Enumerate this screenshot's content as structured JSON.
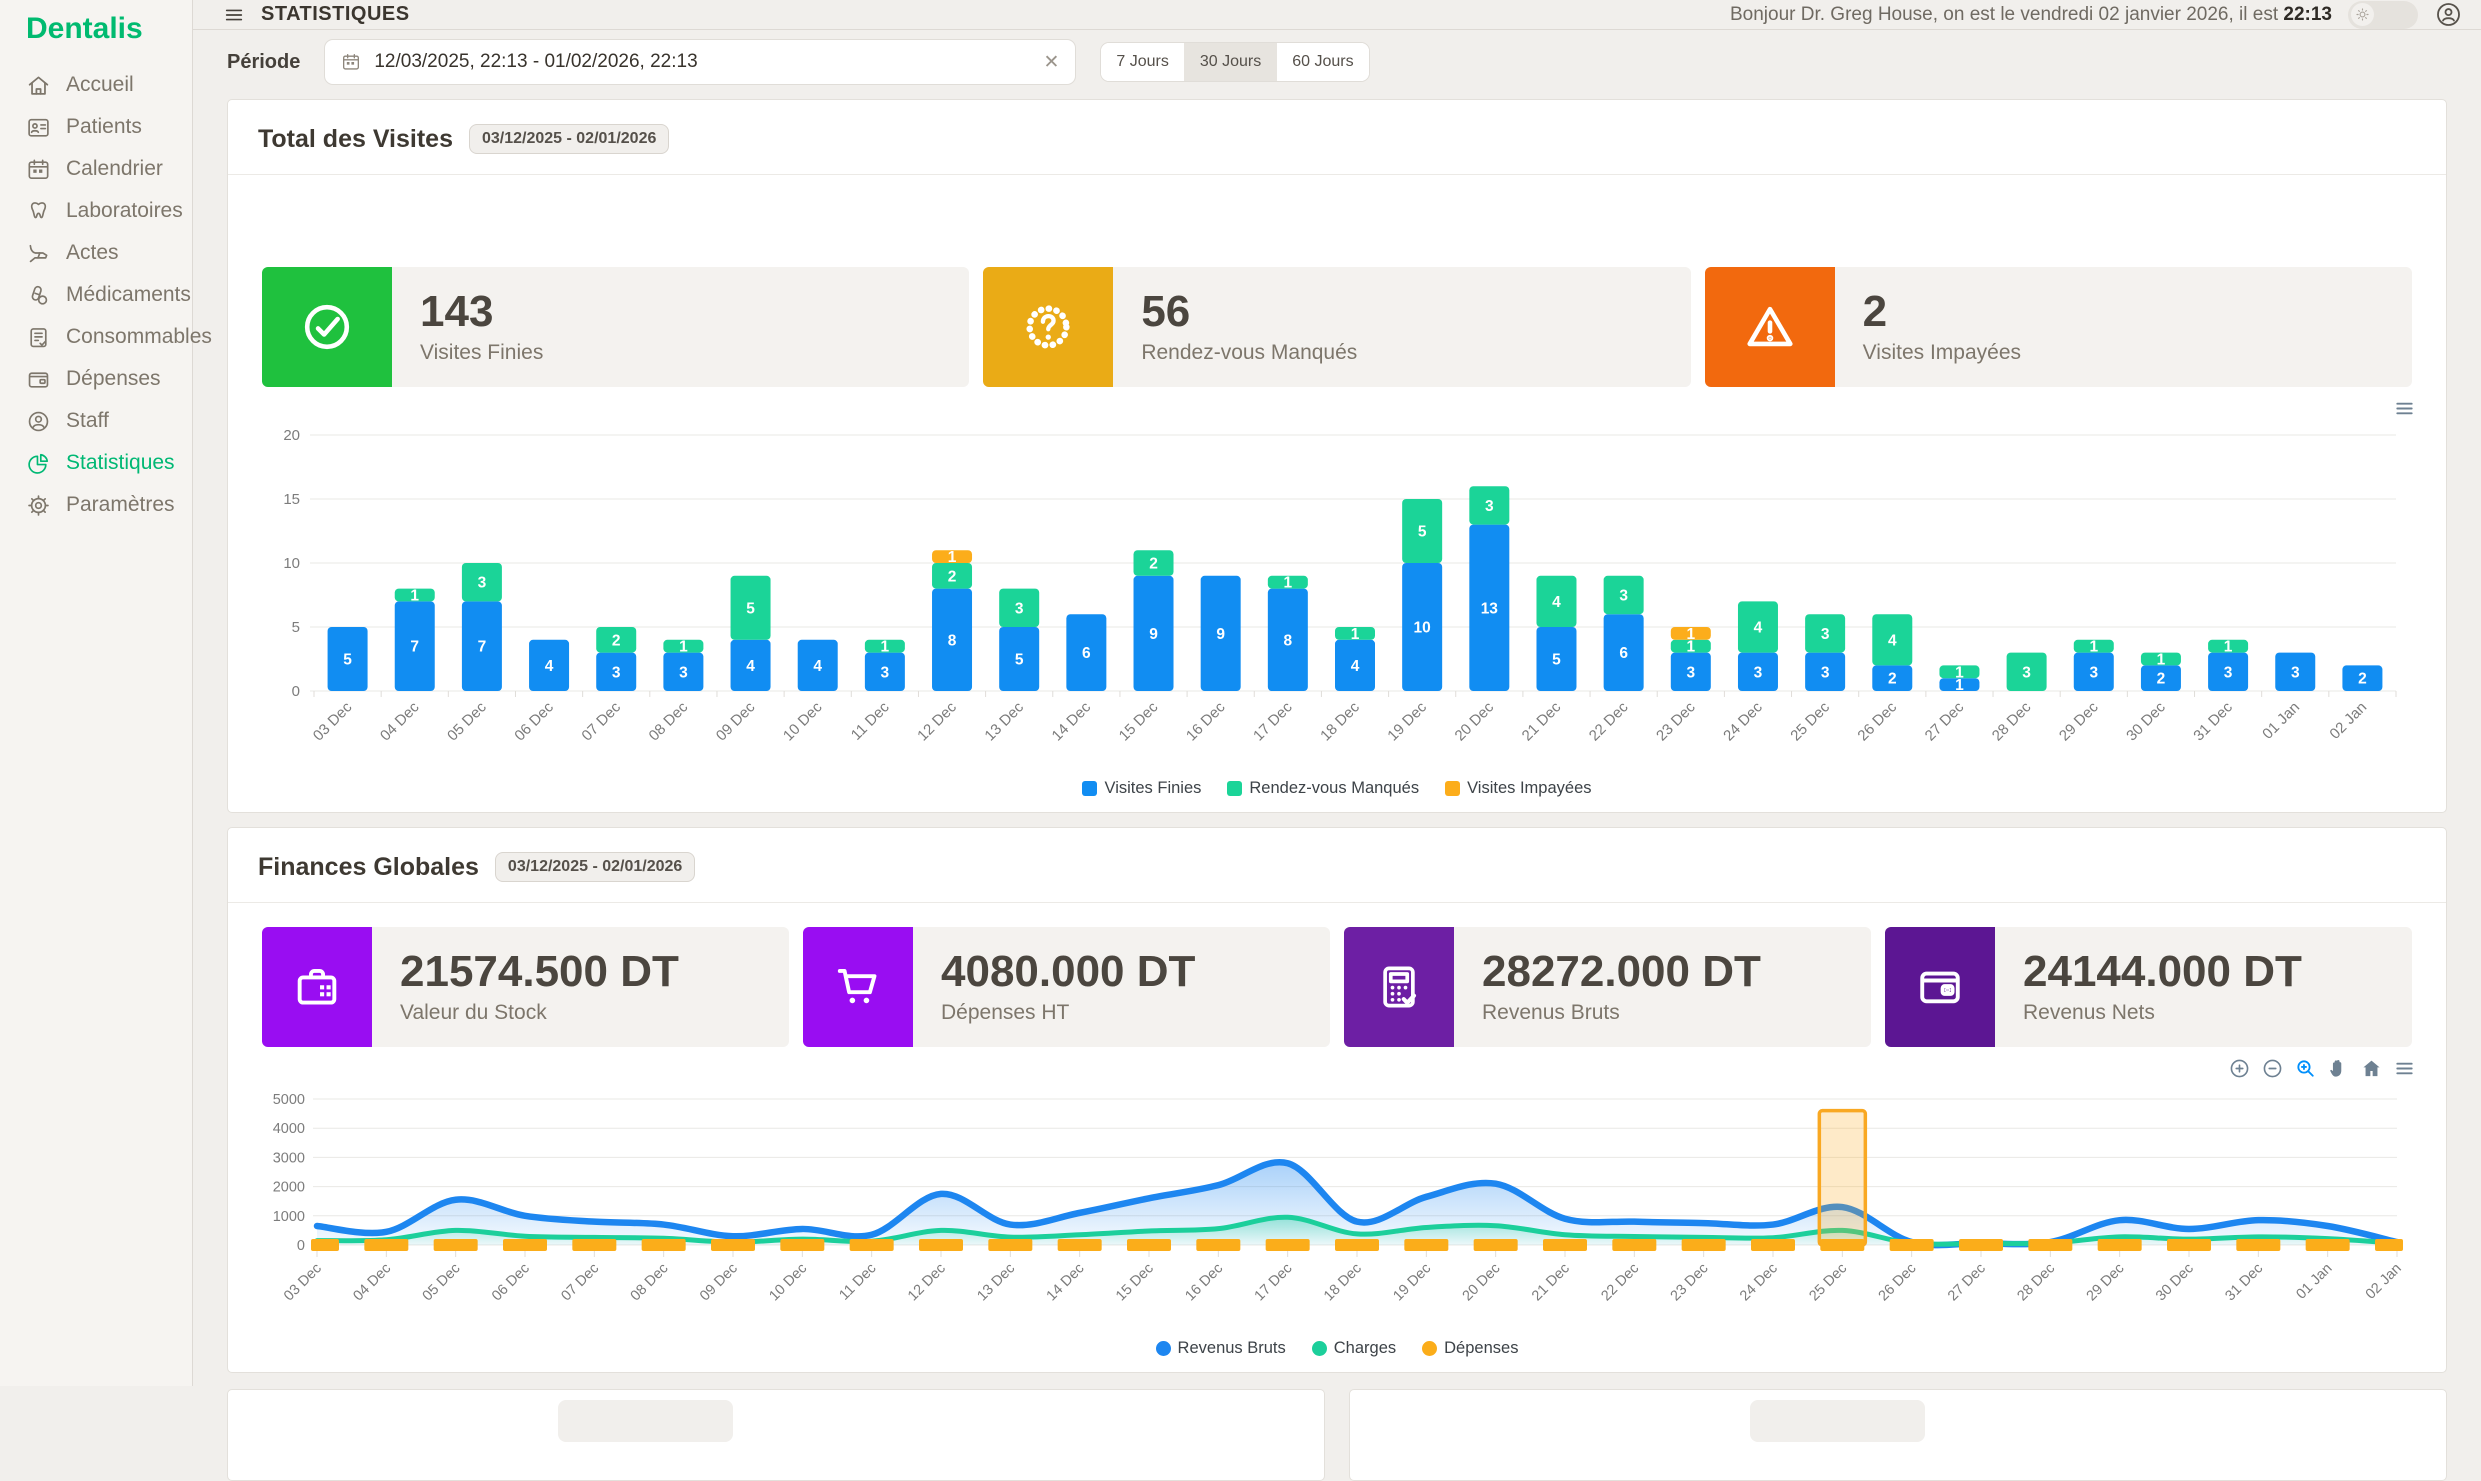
{
  "topbar": {
    "title": "STATISTIQUES",
    "greeting_prefix": "Bonjour Dr. Greg House, on est le vendredi 02 janvier 2026, il est ",
    "time": "22:13"
  },
  "sidebar": {
    "logo": "Dentalis",
    "items": [
      {
        "id": "accueil",
        "label": "Accueil",
        "icon": "home-icon",
        "active": false
      },
      {
        "id": "patients",
        "label": "Patients",
        "icon": "patients-icon",
        "active": false
      },
      {
        "id": "calendrier",
        "label": "Calendrier",
        "icon": "calendar-icon",
        "active": false
      },
      {
        "id": "laboratoires",
        "label": "Laboratoires",
        "icon": "tooth-icon",
        "active": false
      },
      {
        "id": "actes",
        "label": "Actes",
        "icon": "dental-chair-icon",
        "active": false
      },
      {
        "id": "medicaments",
        "label": "Médicaments",
        "icon": "pills-icon",
        "active": false
      },
      {
        "id": "consommables",
        "label": "Consommables",
        "icon": "clipboard-check-icon",
        "active": false
      },
      {
        "id": "depenses",
        "label": "Dépenses",
        "icon": "wallet-icon",
        "active": false
      },
      {
        "id": "staff",
        "label": "Staff",
        "icon": "user-circle-icon",
        "active": false
      },
      {
        "id": "statistiques",
        "label": "Statistiques",
        "icon": "pie-chart-icon",
        "active": true
      },
      {
        "id": "parametres",
        "label": "Paramètres",
        "icon": "gear-icon",
        "active": false
      }
    ]
  },
  "periode": {
    "label": "Période",
    "value": "12/03/2025, 22:13 - 01/02/2026, 22:13",
    "quick_ranges": [
      {
        "label": "7 Jours",
        "active": false
      },
      {
        "label": "30 Jours",
        "active": true
      },
      {
        "label": "60 Jours",
        "active": false
      }
    ]
  },
  "visites": {
    "title": "Total des Visites",
    "badge": "03/12/2025 - 02/01/2026",
    "toolbar_icons": [
      "menu-icon"
    ],
    "stats": [
      {
        "value": "143",
        "label": "Visites Finies",
        "icon": "check-circle-icon",
        "color": "#1fc13e"
      },
      {
        "value": "56",
        "label": "Rendez-vous Manqués",
        "icon": "question-seal-icon",
        "color": "#eaab16"
      },
      {
        "value": "2",
        "label": "Visites Impayées",
        "icon": "warning-triangle-icon",
        "color": "#f2690e"
      }
    ]
  },
  "finances": {
    "title": "Finances Globales",
    "badge": "03/12/2025 - 02/01/2026",
    "toolbar_icons": [
      "zoom-in-icon",
      "zoom-out-icon",
      "selection-zoom-icon",
      "pan-icon",
      "reset-icon",
      "menu-icon"
    ],
    "stats": [
      {
        "value": "21574.500 DT",
        "label": "Valeur du Stock",
        "icon": "briefcase-icon",
        "color": "#990df2"
      },
      {
        "value": "4080.000 DT",
        "label": "Dépenses HT",
        "icon": "cart-icon",
        "color": "#990df2"
      },
      {
        "value": "28272.000 DT",
        "label": "Revenus Bruts",
        "icon": "calculator-icon",
        "color": "#6d1fa4"
      },
      {
        "value": "24144.000 DT",
        "label": "Revenus Nets",
        "icon": "wallet2-icon",
        "color": "#5c1693"
      }
    ]
  },
  "chart_data": [
    {
      "type": "bar",
      "stacked": true,
      "title": "Total des Visites",
      "categories": [
        "03 Dec",
        "04 Dec",
        "05 Dec",
        "06 Dec",
        "07 Dec",
        "08 Dec",
        "09 Dec",
        "10 Dec",
        "11 Dec",
        "12 Dec",
        "13 Dec",
        "14 Dec",
        "15 Dec",
        "16 Dec",
        "17 Dec",
        "18 Dec",
        "19 Dec",
        "20 Dec",
        "21 Dec",
        "22 Dec",
        "23 Dec",
        "24 Dec",
        "25 Dec",
        "26 Dec",
        "27 Dec",
        "28 Dec",
        "29 Dec",
        "30 Dec",
        "31 Dec",
        "01 Jan",
        "02 Jan"
      ],
      "series": [
        {
          "name": "Visites Finies",
          "color": "#118df2",
          "values": [
            5,
            7,
            7,
            4,
            3,
            3,
            4,
            4,
            3,
            8,
            5,
            6,
            9,
            9,
            8,
            4,
            10,
            13,
            5,
            6,
            3,
            3,
            3,
            2,
            1,
            0,
            3,
            2,
            3,
            3,
            2
          ]
        },
        {
          "name": "Rendez-vous Manqués",
          "color": "#1bd498",
          "values": [
            0,
            1,
            3,
            0,
            2,
            1,
            5,
            0,
            1,
            2,
            3,
            0,
            2,
            0,
            1,
            1,
            5,
            3,
            4,
            3,
            1,
            4,
            3,
            4,
            1,
            3,
            1,
            1,
            1,
            0,
            0
          ]
        },
        {
          "name": "Visites Impayées",
          "color": "#fcad1b",
          "values": [
            0,
            0,
            0,
            0,
            0,
            0,
            0,
            0,
            0,
            1,
            0,
            0,
            0,
            0,
            0,
            0,
            0,
            0,
            0,
            0,
            1,
            0,
            0,
            0,
            0,
            0,
            0,
            0,
            0,
            0,
            0
          ]
        }
      ],
      "ylim": [
        0,
        20
      ],
      "yticks": [
        0,
        5,
        10,
        15,
        20
      ],
      "grid": true,
      "legend_position": "bottom",
      "marker": "square"
    },
    {
      "type": "area",
      "title": "Finances Globales",
      "categories": [
        "03 Dec",
        "04 Dec",
        "05 Dec",
        "06 Dec",
        "07 Dec",
        "08 Dec",
        "09 Dec",
        "10 Dec",
        "11 Dec",
        "12 Dec",
        "13 Dec",
        "14 Dec",
        "15 Dec",
        "16 Dec",
        "17 Dec",
        "18 Dec",
        "19 Dec",
        "20 Dec",
        "21 Dec",
        "22 Dec",
        "23 Dec",
        "24 Dec",
        "25 Dec",
        "26 Dec",
        "27 Dec",
        "28 Dec",
        "29 Dec",
        "30 Dec",
        "31 Dec",
        "01 Jan",
        "02 Jan"
      ],
      "series": [
        {
          "name": "Revenus Bruts",
          "color": "#1d86f0",
          "style": "smooth-area",
          "values": [
            650,
            450,
            1550,
            1000,
            800,
            700,
            300,
            550,
            350,
            1750,
            700,
            1100,
            1600,
            2050,
            2800,
            800,
            1650,
            2100,
            900,
            800,
            750,
            700,
            1300,
            100,
            60,
            100,
            850,
            550,
            850,
            650,
            100
          ]
        },
        {
          "name": "Charges",
          "color": "#1ccf9b",
          "style": "smooth-area",
          "values": [
            150,
            180,
            500,
            300,
            260,
            230,
            100,
            200,
            130,
            500,
            270,
            350,
            480,
            560,
            950,
            380,
            600,
            660,
            350,
            290,
            260,
            250,
            500,
            60,
            50,
            70,
            280,
            200,
            280,
            220,
            60
          ]
        },
        {
          "name": "Dépenses",
          "color": "#fbad1a",
          "style": "dashed",
          "values": [
            100,
            100,
            100,
            100,
            100,
            100,
            100,
            100,
            100,
            100,
            100,
            100,
            100,
            100,
            100,
            100,
            100,
            100,
            100,
            100,
            100,
            100,
            100,
            100,
            100,
            100,
            100,
            100,
            100,
            100,
            100
          ]
        }
      ],
      "ylim": [
        0,
        5000
      ],
      "yticks": [
        0,
        1000,
        2000,
        3000,
        4000,
        5000
      ],
      "annotation": {
        "category": "25 Dec",
        "y_top": 4600,
        "color": "#f9a822"
      },
      "grid": true,
      "legend_position": "bottom",
      "marker": "circle"
    }
  ]
}
